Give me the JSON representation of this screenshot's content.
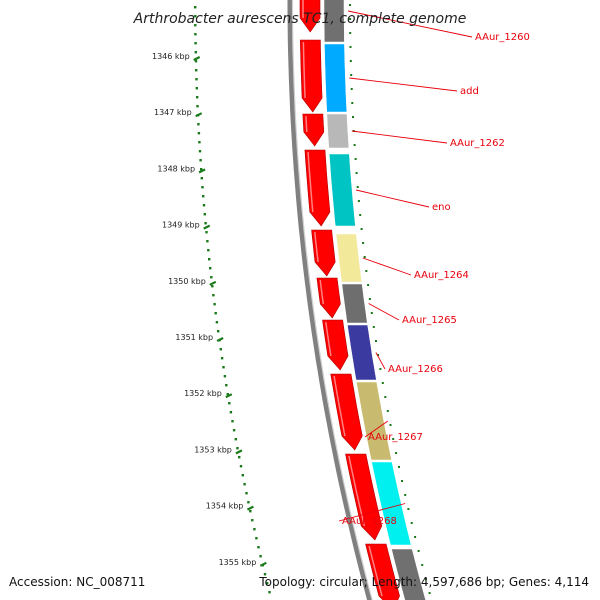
{
  "title": "Arthrobacter aurescens TC1, complete genome",
  "footer": {
    "accession": "Accession: NC_008711",
    "summary": "Topology: circular; Length: 4,597,686 bp; Genes: 4,114"
  },
  "colors": {
    "label": "#e8000b",
    "tick": "#1a7a1a",
    "ring": "#808080",
    "cds": "#ff0000"
  },
  "ticks": [
    {
      "label": "1346 kbp"
    },
    {
      "label": "1347 kbp"
    },
    {
      "label": "1348 kbp"
    },
    {
      "label": "1349 kbp"
    },
    {
      "label": "1350 kbp"
    },
    {
      "label": "1351 kbp"
    },
    {
      "label": "1352 kbp"
    },
    {
      "label": "1353 kbp"
    },
    {
      "label": "1354 kbp"
    },
    {
      "label": "1355 kbp"
    }
  ],
  "genes": [
    {
      "name": "AAur_1260",
      "color": "#707070"
    },
    {
      "name": "add",
      "color": "#00aaff"
    },
    {
      "name": "AAur_1262",
      "color": "#b8b8b8"
    },
    {
      "name": "eno",
      "color": "#00c4c4"
    },
    {
      "name": "AAur_1264",
      "color": "#f2e99a"
    },
    {
      "name": "AAur_1265",
      "color": "#6e6e6e"
    },
    {
      "name": "AAur_1266",
      "color": "#3a3aa0"
    },
    {
      "name": "AAur_1267",
      "color": "#c8bb70"
    },
    {
      "name": "AAur_1268",
      "color": "#00f0f0"
    }
  ]
}
